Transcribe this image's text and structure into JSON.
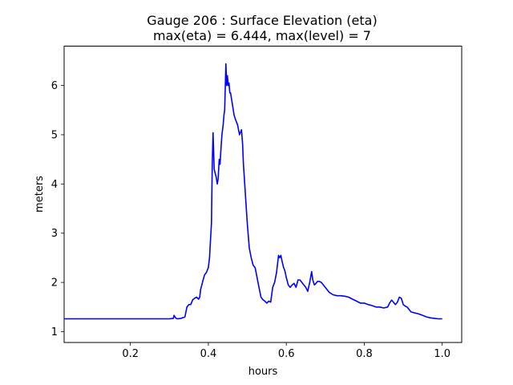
{
  "chart_data": {
    "type": "line",
    "title_line1": "Gauge 206 : Surface Elevation (eta)",
    "title_line2": "max(eta) =   6.444,    max(level) = 7",
    "xlabel": "hours",
    "ylabel": "meters",
    "xlim": [
      0.03,
      1.05
    ],
    "ylim": [
      0.78,
      6.8
    ],
    "xticks": [
      0.2,
      0.4,
      0.6,
      0.8,
      1.0
    ],
    "xtick_labels": [
      "0.2",
      "0.4",
      "0.6",
      "0.8",
      "1.0"
    ],
    "yticks": [
      1,
      2,
      3,
      4,
      5,
      6
    ],
    "ytick_labels": [
      "1",
      "2",
      "3",
      "4",
      "5",
      "6"
    ],
    "grid": false,
    "series": [
      {
        "color": "#0000ff",
        "x": [
          0.03,
          0.1,
          0.2,
          0.3,
          0.31,
          0.312,
          0.316,
          0.32,
          0.33,
          0.34,
          0.345,
          0.35,
          0.355,
          0.36,
          0.365,
          0.37,
          0.375,
          0.378,
          0.38,
          0.385,
          0.39,
          0.395,
          0.4,
          0.403,
          0.405,
          0.408,
          0.41,
          0.412,
          0.415,
          0.418,
          0.42,
          0.423,
          0.425,
          0.428,
          0.43,
          0.433,
          0.435,
          0.438,
          0.44,
          0.442,
          0.445,
          0.447,
          0.449,
          0.451,
          0.453,
          0.455,
          0.457,
          0.46,
          0.463,
          0.466,
          0.47,
          0.475,
          0.48,
          0.485,
          0.488,
          0.49,
          0.495,
          0.5,
          0.505,
          0.51,
          0.515,
          0.52,
          0.525,
          0.53,
          0.535,
          0.54,
          0.545,
          0.55,
          0.555,
          0.56,
          0.565,
          0.57,
          0.575,
          0.58,
          0.583,
          0.586,
          0.59,
          0.593,
          0.596,
          0.6,
          0.605,
          0.61,
          0.615,
          0.62,
          0.625,
          0.63,
          0.635,
          0.64,
          0.645,
          0.65,
          0.655,
          0.66,
          0.665,
          0.668,
          0.672,
          0.675,
          0.68,
          0.685,
          0.69,
          0.695,
          0.7,
          0.705,
          0.71,
          0.72,
          0.73,
          0.74,
          0.75,
          0.76,
          0.77,
          0.78,
          0.79,
          0.8,
          0.81,
          0.82,
          0.83,
          0.84,
          0.85,
          0.86,
          0.865,
          0.87,
          0.875,
          0.88,
          0.885,
          0.89,
          0.895,
          0.9,
          0.905,
          0.91,
          0.915,
          0.92,
          0.93,
          0.94,
          0.95,
          0.96,
          0.97,
          0.98,
          0.99,
          1.0
        ],
        "y": [
          1.26,
          1.26,
          1.26,
          1.26,
          1.27,
          1.33,
          1.28,
          1.26,
          1.27,
          1.3,
          1.5,
          1.55,
          1.55,
          1.65,
          1.68,
          1.7,
          1.66,
          1.7,
          1.85,
          2.0,
          2.15,
          2.2,
          2.3,
          2.5,
          2.8,
          3.2,
          4.4,
          5.04,
          4.3,
          4.2,
          4.15,
          4.0,
          4.1,
          4.5,
          4.4,
          4.8,
          5.0,
          5.2,
          5.4,
          5.5,
          6.44,
          6.0,
          6.2,
          6.0,
          6.05,
          5.85,
          5.85,
          5.7,
          5.55,
          5.4,
          5.3,
          5.2,
          5.0,
          5.1,
          4.8,
          4.4,
          3.8,
          3.2,
          2.7,
          2.5,
          2.35,
          2.3,
          2.1,
          1.9,
          1.7,
          1.65,
          1.62,
          1.58,
          1.62,
          1.6,
          1.9,
          2.0,
          2.2,
          2.55,
          2.5,
          2.55,
          2.4,
          2.3,
          2.25,
          2.1,
          1.95,
          1.9,
          1.95,
          1.98,
          1.9,
          2.05,
          2.05,
          2.0,
          1.95,
          1.9,
          1.82,
          2.0,
          2.22,
          2.05,
          1.95,
          1.97,
          2.02,
          2.02,
          2.0,
          1.95,
          1.9,
          1.85,
          1.8,
          1.75,
          1.73,
          1.73,
          1.72,
          1.7,
          1.66,
          1.62,
          1.58,
          1.58,
          1.55,
          1.53,
          1.5,
          1.5,
          1.48,
          1.5,
          1.58,
          1.64,
          1.6,
          1.55,
          1.6,
          1.7,
          1.68,
          1.55,
          1.52,
          1.5,
          1.45,
          1.4,
          1.38,
          1.36,
          1.33,
          1.3,
          1.28,
          1.27,
          1.26,
          1.26
        ]
      }
    ]
  }
}
